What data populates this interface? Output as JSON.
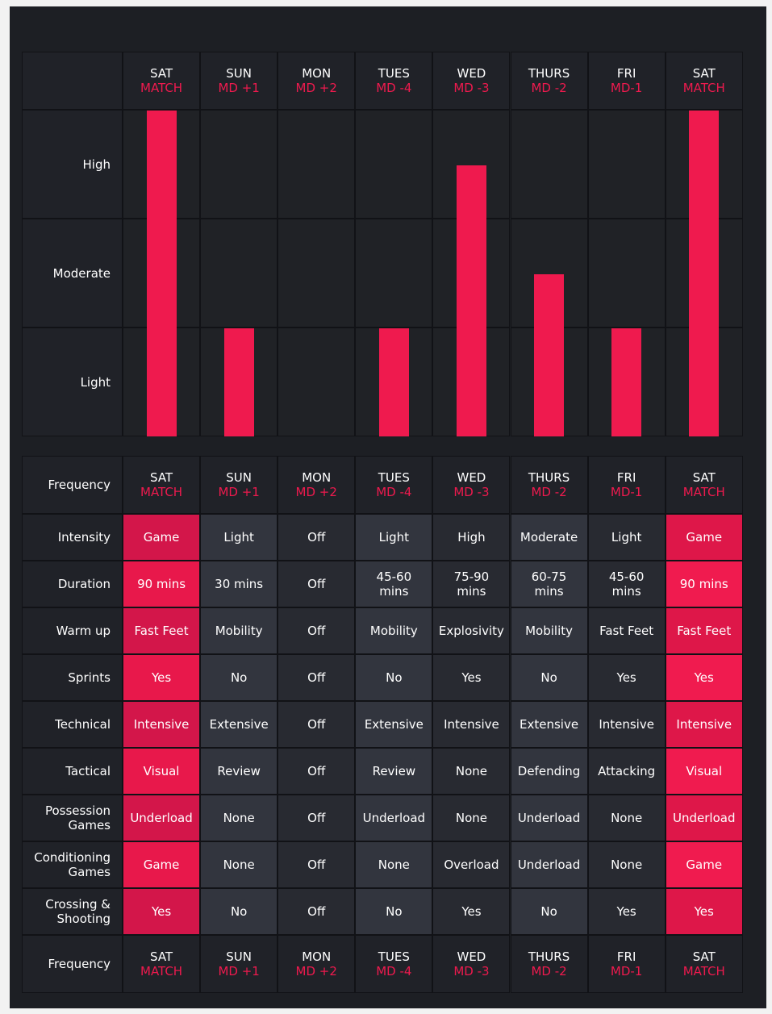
{
  "days": [
    {
      "day": "SAT",
      "md": "MATCH",
      "highlight": true
    },
    {
      "day": "SUN",
      "md": "MD +1",
      "highlight": false
    },
    {
      "day": "MON",
      "md": "MD +2",
      "highlight": false
    },
    {
      "day": "TUES",
      "md": "MD -4",
      "highlight": false
    },
    {
      "day": "WED",
      "md": "MD -3",
      "highlight": false
    },
    {
      "day": "THURS",
      "md": "MD -2",
      "highlight": false
    },
    {
      "day": "FRI",
      "md": "MD-1",
      "highlight": false
    },
    {
      "day": "SAT",
      "md": "MATCH",
      "highlight": true
    }
  ],
  "levels": [
    "High",
    "Moderate",
    "Light"
  ],
  "bar_color": "#ef1a4e",
  "table": {
    "corner_label": "Frequency",
    "rows": [
      {
        "label": "Intensity",
        "cells": [
          "Game",
          "Light",
          "Off",
          "Light",
          "High",
          "Moderate",
          "Light",
          "Game"
        ]
      },
      {
        "label": "Duration",
        "cells": [
          "90 mins",
          "30 mins",
          "Off",
          "45-60 mins",
          "75-90 mins",
          "60-75 mins",
          "45-60 mins",
          "90 mins"
        ]
      },
      {
        "label": "Warm up",
        "cells": [
          "Fast Feet",
          "Mobility",
          "Off",
          "Mobility",
          "Explosivity",
          "Mobility",
          "Fast Feet",
          "Fast Feet"
        ]
      },
      {
        "label": "Sprints",
        "cells": [
          "Yes",
          "No",
          "Off",
          "No",
          "Yes",
          "No",
          "Yes",
          "Yes"
        ]
      },
      {
        "label": "Technical",
        "cells": [
          "Intensive",
          "Extensive",
          "Off",
          "Extensive",
          "Intensive",
          "Extensive",
          "Intensive",
          "Intensive"
        ]
      },
      {
        "label": "Tactical",
        "cells": [
          "Visual",
          "Review",
          "Off",
          "Review",
          "None",
          "Defending",
          "Attacking",
          "Visual"
        ]
      },
      {
        "label": "Possession Games",
        "cells": [
          "Underload",
          "None",
          "Off",
          "Underload",
          "None",
          "Underload",
          "None",
          "Underload"
        ]
      },
      {
        "label": "Conditioning Games",
        "cells": [
          "Game",
          "None",
          "Off",
          "None",
          "Overload",
          "Underload",
          "None",
          "Game"
        ]
      },
      {
        "label": "Crossing & Shooting",
        "cells": [
          "Yes",
          "No",
          "Off",
          "No",
          "Yes",
          "No",
          "Yes",
          "Yes"
        ]
      }
    ]
  }
}
